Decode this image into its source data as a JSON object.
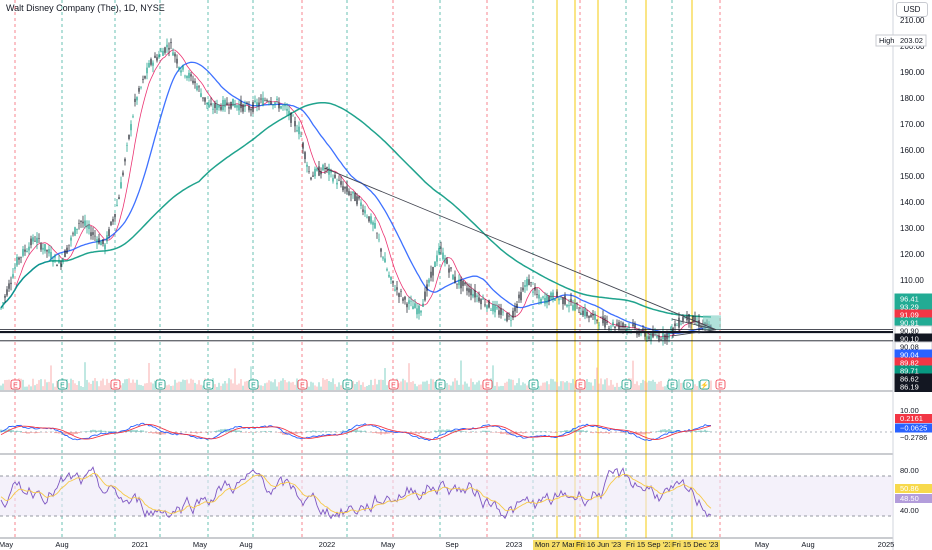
{
  "header": {
    "symbol_title": "Walt Disney Company (The), 1D, NYSE",
    "currency": "USD",
    "high_label": "High",
    "high_value": "203.02"
  },
  "price_axis": {
    "ticks": [
      "210.00",
      "200.00",
      "190.00",
      "180.00",
      "170.00",
      "160.00",
      "150.00",
      "140.00",
      "130.00",
      "120.00",
      "110.00",
      "100.00"
    ]
  },
  "price_badges": [
    {
      "value": "96.41",
      "color": "#22ab94"
    },
    {
      "value": "93.29",
      "color": "#22ab94"
    },
    {
      "value": "91.09",
      "color": "#f23645"
    },
    {
      "value": "90.91",
      "color": "#22ab94"
    },
    {
      "value": "90.90",
      "color": "#ffffff"
    },
    {
      "value": "90.10",
      "color": "#131722"
    },
    {
      "value": "90.08",
      "color": "#ffffff"
    },
    {
      "value": "90.04",
      "color": "#2962ff"
    },
    {
      "value": "89.82",
      "color": "#f23645"
    },
    {
      "value": "89.71",
      "color": "#089981"
    },
    {
      "value": "86.62",
      "color": "#131722"
    },
    {
      "value": "86.19",
      "color": "#131722"
    }
  ],
  "macd_axis": {
    "ticks": [
      "10.00"
    ],
    "badges": [
      {
        "value": "0.2161",
        "color": "#f23645"
      },
      {
        "value": "−0.0625",
        "color": "#2962ff"
      },
      {
        "value": "−0.2786",
        "color": "#ffffff"
      }
    ]
  },
  "rsi_axis": {
    "ticks": [
      "80.00",
      "40.00"
    ],
    "badges": [
      {
        "value": "50.86",
        "color": "#f7d94c"
      },
      {
        "value": "48.50",
        "color": "#b39ddb"
      }
    ]
  },
  "time_axis": {
    "labels": [
      "May",
      "Aug",
      "2021",
      "May",
      "Aug",
      "2022",
      "May",
      "Sep",
      "2023",
      "Mon 27 Mar '23",
      "Fri 16 Jun '23",
      "Fri 15 Sep '23",
      "Fri 15 Dec '23",
      "May",
      "Aug",
      "2025"
    ]
  },
  "chart_data": {
    "type": "line",
    "title": "Walt Disney Company (The), 1D, NYSE",
    "ylim": [
      84,
      212
    ],
    "x": [
      "2020-05",
      "2020-08",
      "2021-01",
      "2021-03",
      "2021-05",
      "2021-08",
      "2022-01",
      "2022-05",
      "2022-09",
      "2023-01",
      "2023-03",
      "2023-06",
      "2023-09",
      "2023-12"
    ],
    "series": [
      {
        "name": "",
        "values": [
          98,
          128,
          145,
          197,
          178,
          177,
          157,
          107,
          123,
          104,
          110,
          92,
          88,
          91
        ]
      }
    ],
    "annotations": [
      "E",
      "E",
      "E",
      "E",
      "E",
      "E",
      "E",
      "E",
      "E",
      "E",
      "E",
      "E",
      "E",
      "D"
    ]
  }
}
